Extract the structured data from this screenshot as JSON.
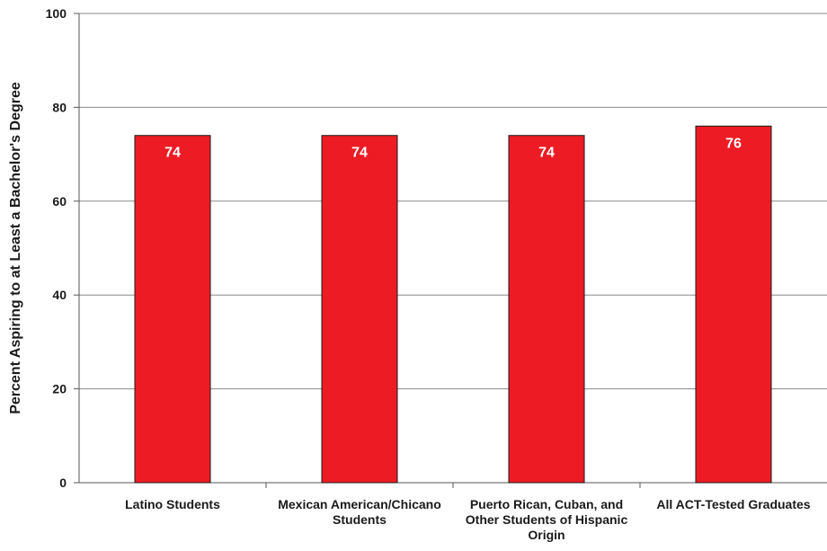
{
  "chart_data": {
    "type": "bar",
    "categories": [
      "Latino Students",
      "Mexican American/Chicano Students",
      "Puerto Rican, Cuban, and Other Students of Hispanic Origin",
      "All ACT-Tested Graduates"
    ],
    "values": [
      74,
      74,
      74,
      76
    ],
    "data_labels": [
      "74",
      "74",
      "74",
      "76"
    ],
    "ylabel": "Percent Aspiring to at Least a Bachelor's Degree",
    "xlabel": "",
    "ylim": [
      0,
      100
    ],
    "yticks": [
      0,
      20,
      40,
      60,
      80,
      100
    ],
    "grid": true,
    "legend": "none",
    "bar_color": "#ed1c24",
    "label_color": "#ffffff"
  }
}
